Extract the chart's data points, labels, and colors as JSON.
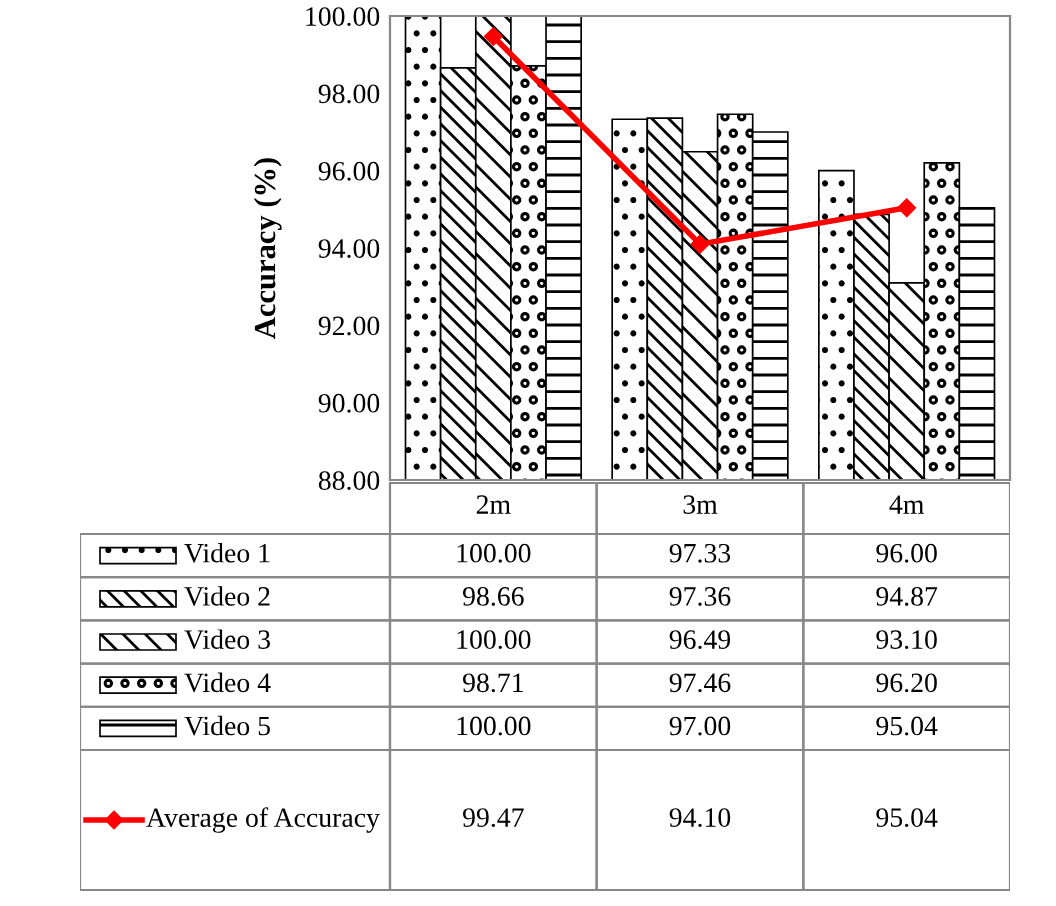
{
  "chart_data": {
    "type": "bar",
    "ylabel": "Accuracy (%)",
    "categories": [
      "2m",
      "3m",
      "4m"
    ],
    "ylim": [
      88,
      100
    ],
    "yticks": [
      {
        "value": 88,
        "label": "88.00"
      },
      {
        "value": 90,
        "label": "90.00"
      },
      {
        "value": 92,
        "label": "92.00"
      },
      {
        "value": 94,
        "label": "94.00"
      },
      {
        "value": 96,
        "label": "96.00"
      },
      {
        "value": 98,
        "label": "98.00"
      },
      {
        "value": 100,
        "label": "100.00"
      }
    ],
    "grid": false,
    "legend": "bottom",
    "series": [
      {
        "name": "Video 1",
        "color": "#000000",
        "values": [
          100.0,
          97.33,
          96.0
        ],
        "value_labels": [
          "100.00",
          "97.33",
          "96.00"
        ]
      },
      {
        "name": "Video 2",
        "color": "#000000",
        "values": [
          98.66,
          97.36,
          94.87
        ],
        "value_labels": [
          "98.66",
          "97.36",
          "94.87"
        ]
      },
      {
        "name": "Video 3",
        "color": "#000000",
        "values": [
          100.0,
          96.49,
          93.1
        ],
        "value_labels": [
          "100.00",
          "96.49",
          "93.10"
        ]
      },
      {
        "name": "Video 4",
        "color": "#000000",
        "values": [
          98.71,
          97.46,
          96.2
        ],
        "value_labels": [
          "98.71",
          "97.46",
          "96.20"
        ]
      },
      {
        "name": "Video 5",
        "color": "#000000",
        "values": [
          100.0,
          97.0,
          95.04
        ],
        "value_labels": [
          "100.00",
          "97.00",
          "95.04"
        ]
      },
      {
        "name": "Average of Accuracy",
        "type": "line",
        "color": "#ff0000",
        "marker": "diamond",
        "line_style": "solid",
        "values": [
          99.47,
          94.1,
          95.04
        ],
        "value_labels": [
          "99.47",
          "94.10",
          "95.04"
        ]
      }
    ]
  }
}
